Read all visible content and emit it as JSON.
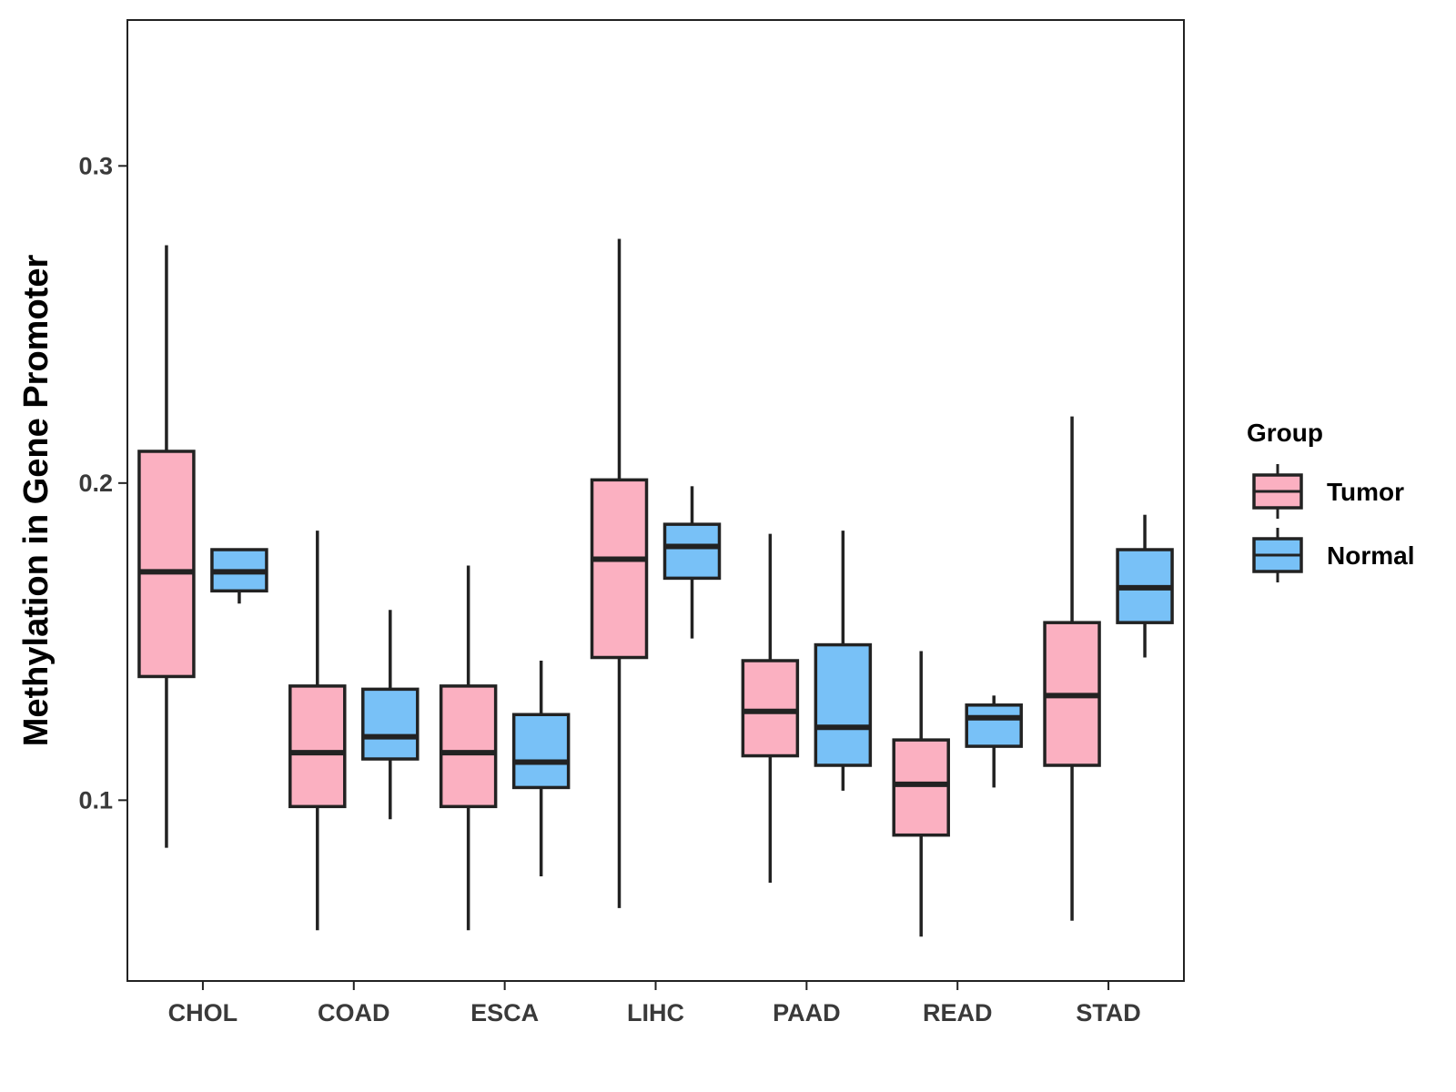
{
  "chart_data": {
    "type": "boxplot",
    "title": "",
    "xlabel": "",
    "ylabel": "Methylation in Gene Promoter",
    "ylim": [
      0.043,
      0.346
    ],
    "yticks": [
      0.1,
      0.2,
      0.3
    ],
    "ytick_labels": [
      "0.1",
      "0.2",
      "0.3"
    ],
    "grid": false,
    "legend_position": "right",
    "categories": [
      "CHOL",
      "COAD",
      "ESCA",
      "LIHC",
      "PAAD",
      "READ",
      "STAD"
    ],
    "legend": {
      "title": "Group"
    },
    "series": [
      {
        "name": "Tumor",
        "color": "#fbb0c1",
        "boxes": [
          {
            "min": 0.085,
            "q1": 0.139,
            "median": 0.172,
            "q3": 0.21,
            "max": 0.275
          },
          {
            "min": 0.059,
            "q1": 0.098,
            "median": 0.115,
            "q3": 0.136,
            "max": 0.185
          },
          {
            "min": 0.059,
            "q1": 0.098,
            "median": 0.115,
            "q3": 0.136,
            "max": 0.174
          },
          {
            "min": 0.066,
            "q1": 0.145,
            "median": 0.176,
            "q3": 0.201,
            "max": 0.277
          },
          {
            "min": 0.074,
            "q1": 0.114,
            "median": 0.128,
            "q3": 0.144,
            "max": 0.184
          },
          {
            "min": 0.057,
            "q1": 0.089,
            "median": 0.105,
            "q3": 0.119,
            "max": 0.147
          },
          {
            "min": 0.062,
            "q1": 0.111,
            "median": 0.133,
            "q3": 0.156,
            "max": 0.221
          }
        ]
      },
      {
        "name": "Normal",
        "color": "#78c1f7",
        "boxes": [
          {
            "min": 0.162,
            "q1": 0.166,
            "median": 0.172,
            "q3": 0.179,
            "max": 0.179
          },
          {
            "min": 0.094,
            "q1": 0.113,
            "median": 0.12,
            "q3": 0.135,
            "max": 0.16
          },
          {
            "min": 0.076,
            "q1": 0.104,
            "median": 0.112,
            "q3": 0.127,
            "max": 0.144
          },
          {
            "min": 0.151,
            "q1": 0.17,
            "median": 0.18,
            "q3": 0.187,
            "max": 0.199
          },
          {
            "min": 0.103,
            "q1": 0.111,
            "median": 0.123,
            "q3": 0.149,
            "max": 0.185
          },
          {
            "min": 0.104,
            "q1": 0.117,
            "median": 0.126,
            "q3": 0.13,
            "max": 0.133
          },
          {
            "min": 0.145,
            "q1": 0.156,
            "median": 0.167,
            "q3": 0.179,
            "max": 0.19
          }
        ]
      }
    ]
  }
}
